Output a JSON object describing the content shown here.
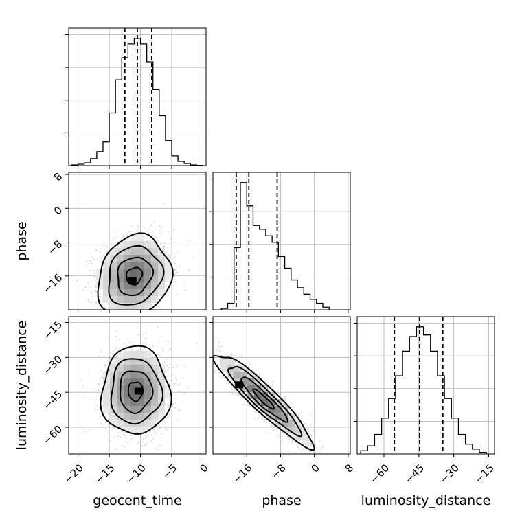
{
  "chart_data": {
    "type": "corner",
    "parameters": [
      "geocent_time",
      "phase",
      "luminosity_distance"
    ],
    "axis_labels": {
      "geocent_time": "geocent_time",
      "phase": "phase",
      "luminosity_distance": "luminosity_distance"
    },
    "ranges": {
      "geocent_time": [
        -21.5,
        0.5
      ],
      "phase": [
        -24,
        8.5
      ],
      "luminosity_distance": [
        -71.5,
        -12.5
      ]
    },
    "ticks": {
      "geocent_time": [
        -20,
        -15,
        -10,
        -5,
        0
      ],
      "phase": [
        -16,
        -8,
        0,
        8
      ],
      "luminosity_distance": [
        -60,
        -45,
        -30,
        -15
      ]
    },
    "grid": true,
    "marginals": {
      "geocent_time": {
        "bin_edges": [
          -21,
          -20,
          -19,
          -18,
          -17,
          -16,
          -15,
          -14,
          -13,
          -12,
          -11,
          -10,
          -9,
          -8,
          -7,
          -6,
          -5,
          -4,
          -3,
          -2,
          -1,
          0
        ],
        "counts": [
          0.5,
          1,
          2,
          5,
          10,
          17,
          38,
          62,
          78,
          88,
          92,
          88,
          75,
          55,
          36,
          18,
          7,
          3,
          1.5,
          0.5,
          0.2
        ],
        "quantiles": [
          -12.5,
          -10.5,
          -8.2
        ]
      },
      "phase": {
        "bin_edges": [
          -22,
          -20.5,
          -19,
          -17.5,
          -16,
          -14.5,
          -13,
          -11.5,
          -10,
          -8.5,
          -7,
          -5.5,
          -4,
          -2.5,
          -1,
          0.5,
          2,
          3.5
        ],
        "counts": [
          1,
          5,
          48,
          98,
          80,
          65,
          62,
          57,
          52,
          41,
          32,
          23,
          17,
          12,
          8,
          5,
          2
        ],
        "quantiles": [
          -18.5,
          -15.5,
          -8.8
        ]
      },
      "luminosity_distance": {
        "bin_edges": [
          -70,
          -67,
          -64,
          -61,
          -58,
          -55,
          -52,
          -49,
          -46,
          -43,
          -40,
          -37,
          -34,
          -31,
          -28,
          -25,
          -22,
          -19,
          -16
        ],
        "counts": [
          2,
          5,
          12,
          22,
          34,
          48,
          63,
          72,
          78,
          73,
          63,
          48,
          34,
          22,
          12,
          6,
          3,
          1
        ],
        "quantiles": [
          -55.5,
          -44.7,
          -34.7
        ]
      }
    },
    "joint": [
      {
        "x": "geocent_time",
        "y": "phase",
        "center": [
          -11,
          -16
        ],
        "spread": [
          2.8,
          4.5
        ],
        "correlation": 0.15,
        "peak": [
          -11.3,
          -17.1
        ]
      },
      {
        "x": "geocent_time",
        "y": "luminosity_distance",
        "center": [
          -10.8,
          -44.5
        ],
        "spread": [
          2.6,
          9
        ],
        "correlation": 0.0,
        "peak": [
          -10.3,
          -44.5
        ]
      },
      {
        "x": "phase",
        "y": "luminosity_distance",
        "center": [
          -12,
          -48
        ],
        "spread": [
          5.5,
          9.5
        ],
        "correlation": -0.93,
        "peak": [
          -17.8,
          -41.8
        ]
      }
    ]
  }
}
